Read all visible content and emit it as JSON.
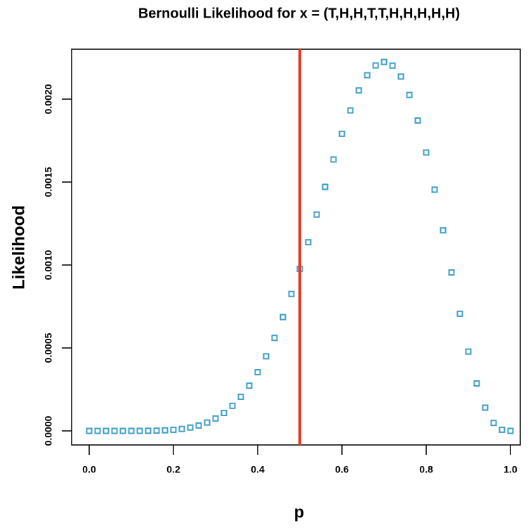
{
  "chart_data": {
    "type": "scatter",
    "title": "Bernoulli Likelihood for x = (T,H,H,T,T,H,H,H,H,H)",
    "x_label": "p",
    "y_label": "Likelihood",
    "x": [
      0,
      0.02,
      0.04,
      0.06,
      0.08,
      0.1,
      0.12,
      0.14,
      0.16,
      0.18,
      0.2,
      0.22,
      0.24,
      0.26,
      0.28,
      0.3,
      0.32,
      0.34,
      0.36,
      0.38,
      0.4,
      0.42,
      0.44,
      0.46,
      0.48,
      0.5,
      0.52,
      0.54,
      0.56,
      0.58,
      0.6,
      0.62,
      0.64,
      0.66,
      0.68,
      0.7,
      0.72,
      0.74,
      0.76,
      0.78,
      0.8,
      0.82,
      0.84,
      0.86,
      0.88,
      0.9,
      0.92,
      0.94,
      0.96,
      0.98,
      1
    ],
    "values": [
      0,
      0,
      0,
      0,
      0,
      1e-07,
      2e-07,
      7e-07,
      1.6e-06,
      3.4e-06,
      6.6e-06,
      1.18e-05,
      2.01e-05,
      3.25e-05,
      5.03e-05,
      7.5e-05,
      0.000108,
      0.000151,
      0.0002054,
      0.0002726,
      0.0003539,
      0.0004497,
      0.0005605,
      0.0006859,
      0.0008255,
      0.0009766,
      0.001137,
      0.001304,
      0.001471,
      0.001636,
      0.001791,
      0.001932,
      0.002052,
      0.002144,
      0.002203,
      0.002224,
      0.002202,
      0.002136,
      0.002025,
      0.001871,
      0.001678,
      0.001454,
      0.001209,
      0.000955,
      0.000706,
      0.000478,
      0.000286,
      0.00014,
      4.8e-05,
      6.9e-06,
      0
    ],
    "color": "#3f9fc9",
    "vline": 0.5,
    "vline_color": "#e8391f",
    "xlim": [
      -0.0417,
      1.0233
    ],
    "xticks": [
      {
        "value": 0,
        "label": "0.0"
      },
      0.2,
      0.4,
      0.6,
      0.8,
      {
        "value": 1,
        "label": "1.0"
      }
    ],
    "ylim": [
      -8.47e-05,
      0.0023008
    ],
    "yticks": [
      {
        "value": 0,
        "label": "0.0000"
      },
      0.0005,
      {
        "value": 0.001,
        "label": "0.0010"
      },
      0.0015,
      {
        "value": 0.002,
        "label": "0.0020"
      }
    ]
  }
}
